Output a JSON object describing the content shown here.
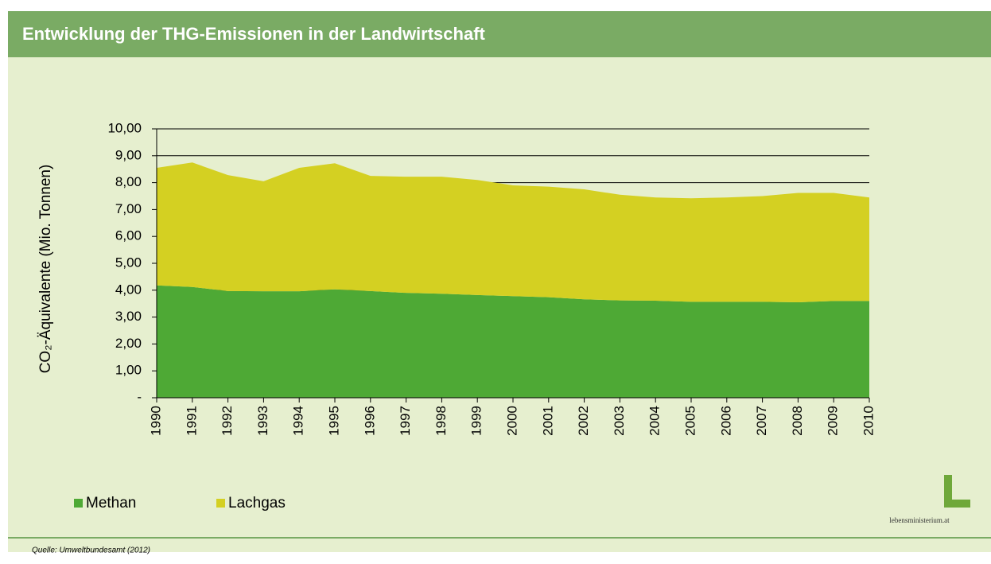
{
  "title": "Entwicklung der THG-Emissionen in der Landwirtschaft",
  "source": "Quelle: Umweltbundesamt (2012)",
  "logo": "lebensministerium.at",
  "chart_data": {
    "type": "stacked-area",
    "ylabel": "CO₂-Äquivalente (Mio. Tonnen)",
    "categories": [
      "1990",
      "1991",
      "1992",
      "1993",
      "1994",
      "1995",
      "1996",
      "1997",
      "1998",
      "1999",
      "2000",
      "2001",
      "2002",
      "2003",
      "2004",
      "2005",
      "2006",
      "2007",
      "2008",
      "2009",
      "2010"
    ],
    "series": [
      {
        "name": "Methan",
        "color": "#4ea935",
        "values": [
          4.18,
          4.12,
          3.97,
          3.96,
          3.96,
          4.03,
          3.97,
          3.9,
          3.87,
          3.82,
          3.78,
          3.74,
          3.66,
          3.62,
          3.61,
          3.57,
          3.57,
          3.57,
          3.55,
          3.6,
          3.6
        ]
      },
      {
        "name": "Lachgas",
        "color": "#d4d022",
        "values": [
          4.37,
          4.63,
          4.31,
          4.09,
          4.59,
          4.69,
          4.28,
          4.32,
          4.35,
          4.28,
          4.12,
          4.11,
          4.09,
          3.93,
          3.84,
          3.85,
          3.88,
          3.93,
          4.07,
          4.02,
          3.85
        ]
      }
    ],
    "ylim": [
      0,
      10
    ],
    "yticks": [
      {
        "value": 0,
        "label": "-"
      },
      {
        "value": 1,
        "label": "1,00"
      },
      {
        "value": 2,
        "label": "2,00"
      },
      {
        "value": 3,
        "label": "3,00"
      },
      {
        "value": 4,
        "label": "4,00"
      },
      {
        "value": 5,
        "label": "5,00"
      },
      {
        "value": 6,
        "label": "6,00"
      },
      {
        "value": 7,
        "label": "7,00"
      },
      {
        "value": 8,
        "label": "8,00"
      },
      {
        "value": 9,
        "label": "9,00"
      },
      {
        "value": 10,
        "label": "10,00"
      }
    ],
    "grid": true,
    "legend": "bottom-left"
  }
}
